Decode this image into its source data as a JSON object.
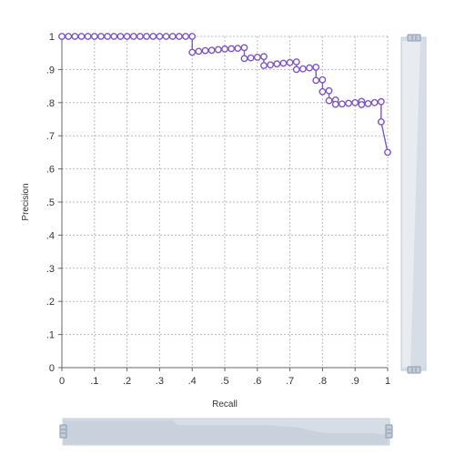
{
  "chart_data": {
    "type": "line",
    "title": "",
    "xlabel": "Recall",
    "ylabel": "Precision",
    "xlim": [
      0,
      1
    ],
    "ylim": [
      0,
      1
    ],
    "x_ticks": [
      "0",
      ".1",
      ".2",
      ".3",
      ".4",
      ".5",
      ".6",
      ".7",
      ".8",
      ".9",
      "1"
    ],
    "y_ticks": [
      "0",
      ".1",
      ".2",
      ".3",
      ".4",
      ".5",
      ".6",
      ".7",
      ".8",
      ".9",
      "1"
    ],
    "grid": true,
    "legend": "none",
    "series": [
      {
        "color": "#7e57c2",
        "marker": "open-circle",
        "points": [
          [
            0.0,
            1.0
          ],
          [
            0.02,
            1.0
          ],
          [
            0.04,
            1.0
          ],
          [
            0.06,
            1.0
          ],
          [
            0.08,
            1.0
          ],
          [
            0.1,
            1.0
          ],
          [
            0.12,
            1.0
          ],
          [
            0.14,
            1.0
          ],
          [
            0.16,
            1.0
          ],
          [
            0.18,
            1.0
          ],
          [
            0.2,
            1.0
          ],
          [
            0.22,
            1.0
          ],
          [
            0.24,
            1.0
          ],
          [
            0.26,
            1.0
          ],
          [
            0.28,
            1.0
          ],
          [
            0.3,
            1.0
          ],
          [
            0.32,
            1.0
          ],
          [
            0.34,
            1.0
          ],
          [
            0.36,
            1.0
          ],
          [
            0.38,
            1.0
          ],
          [
            0.4,
            1.0
          ],
          [
            0.4,
            0.952
          ],
          [
            0.42,
            0.955
          ],
          [
            0.44,
            0.957
          ],
          [
            0.46,
            0.958
          ],
          [
            0.48,
            0.96
          ],
          [
            0.5,
            0.962
          ],
          [
            0.52,
            0.963
          ],
          [
            0.54,
            0.964
          ],
          [
            0.56,
            0.966
          ],
          [
            0.56,
            0.933
          ],
          [
            0.58,
            0.935
          ],
          [
            0.6,
            0.937
          ],
          [
            0.62,
            0.939
          ],
          [
            0.62,
            0.912
          ],
          [
            0.64,
            0.914
          ],
          [
            0.66,
            0.917
          ],
          [
            0.68,
            0.919
          ],
          [
            0.7,
            0.921
          ],
          [
            0.72,
            0.923
          ],
          [
            0.72,
            0.9
          ],
          [
            0.74,
            0.902
          ],
          [
            0.76,
            0.905
          ],
          [
            0.78,
            0.907
          ],
          [
            0.78,
            0.867
          ],
          [
            0.8,
            0.869
          ],
          [
            0.8,
            0.833
          ],
          [
            0.82,
            0.836
          ],
          [
            0.82,
            0.806
          ],
          [
            0.84,
            0.808
          ],
          [
            0.84,
            0.795
          ],
          [
            0.86,
            0.796
          ],
          [
            0.88,
            0.798
          ],
          [
            0.9,
            0.8
          ],
          [
            0.92,
            0.804
          ],
          [
            0.92,
            0.794
          ],
          [
            0.94,
            0.797
          ],
          [
            0.96,
            0.8
          ],
          [
            0.98,
            0.803
          ],
          [
            0.98,
            0.742
          ],
          [
            1.0,
            0.65
          ]
        ]
      }
    ],
    "x_zoom_range": [
      0,
      1
    ],
    "y_zoom_range": [
      0,
      1
    ]
  }
}
